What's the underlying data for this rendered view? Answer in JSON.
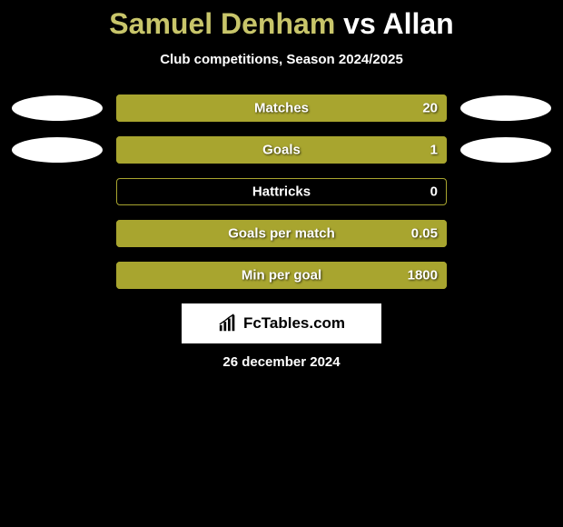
{
  "title": "Samuel Denham vs Allan",
  "subtitle": "Club competitions, Season 2024/2025",
  "colors": {
    "bar_fill": "#a8a52f",
    "bar_border": "#a8a52f",
    "bar_bg": "#000000",
    "text": "#ffffff",
    "title_player1": "#c8c56a",
    "title_vs": "#ffffff",
    "title_player2": "#ffffff"
  },
  "title_parts": {
    "player1": "Samuel Denham",
    "vs": "vs",
    "player2": "Allan"
  },
  "stats": [
    {
      "label": "Matches",
      "value": "20",
      "fill_percent": 100,
      "show_avatars": true
    },
    {
      "label": "Goals",
      "value": "1",
      "fill_percent": 100,
      "show_avatars": true
    },
    {
      "label": "Hattricks",
      "value": "0",
      "fill_percent": 0,
      "show_avatars": false
    },
    {
      "label": "Goals per match",
      "value": "0.05",
      "fill_percent": 100,
      "show_avatars": false
    },
    {
      "label": "Min per goal",
      "value": "1800",
      "fill_percent": 100,
      "show_avatars": false
    }
  ],
  "logo_text": "FcTables.com",
  "date": "26 december 2024"
}
